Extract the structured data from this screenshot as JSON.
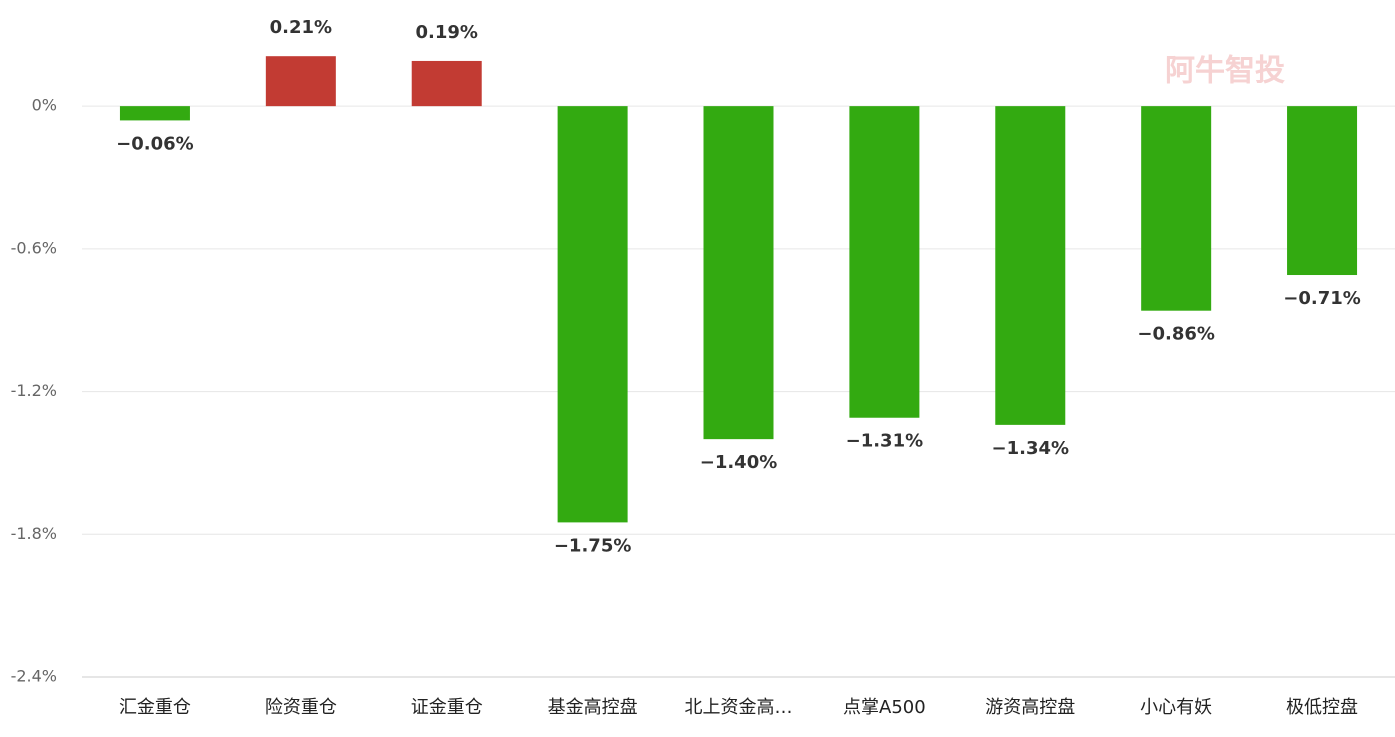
{
  "chart_data": {
    "type": "bar",
    "watermark": "阿牛智投",
    "categories": [
      "汇金重仓",
      "险资重仓",
      "证金重仓",
      "基金高控盘",
      "北上资金高…",
      "点掌A500",
      "游资高控盘",
      "小心有妖",
      "极低控盘"
    ],
    "values": [
      -0.06,
      0.21,
      0.19,
      -1.75,
      -1.4,
      -1.31,
      -1.34,
      -0.86,
      -0.71
    ],
    "value_labels": [
      "−0.06%",
      "0.21%",
      "0.19%",
      "−1.75%",
      "−1.40%",
      "−1.31%",
      "−1.34%",
      "−0.86%",
      "−0.71%"
    ],
    "positive_color": "#c23b33",
    "negative_color": "#33aa11",
    "ylim": [
      -2.4,
      0.4
    ],
    "yticks": [
      {
        "value": 0,
        "label": "0%"
      },
      {
        "value": -0.6,
        "label": "-0.6%"
      },
      {
        "value": -1.2,
        "label": "-1.2%"
      },
      {
        "value": -1.8,
        "label": "-1.8%"
      },
      {
        "value": -2.4,
        "label": "-2.4%"
      }
    ],
    "grid": true
  }
}
